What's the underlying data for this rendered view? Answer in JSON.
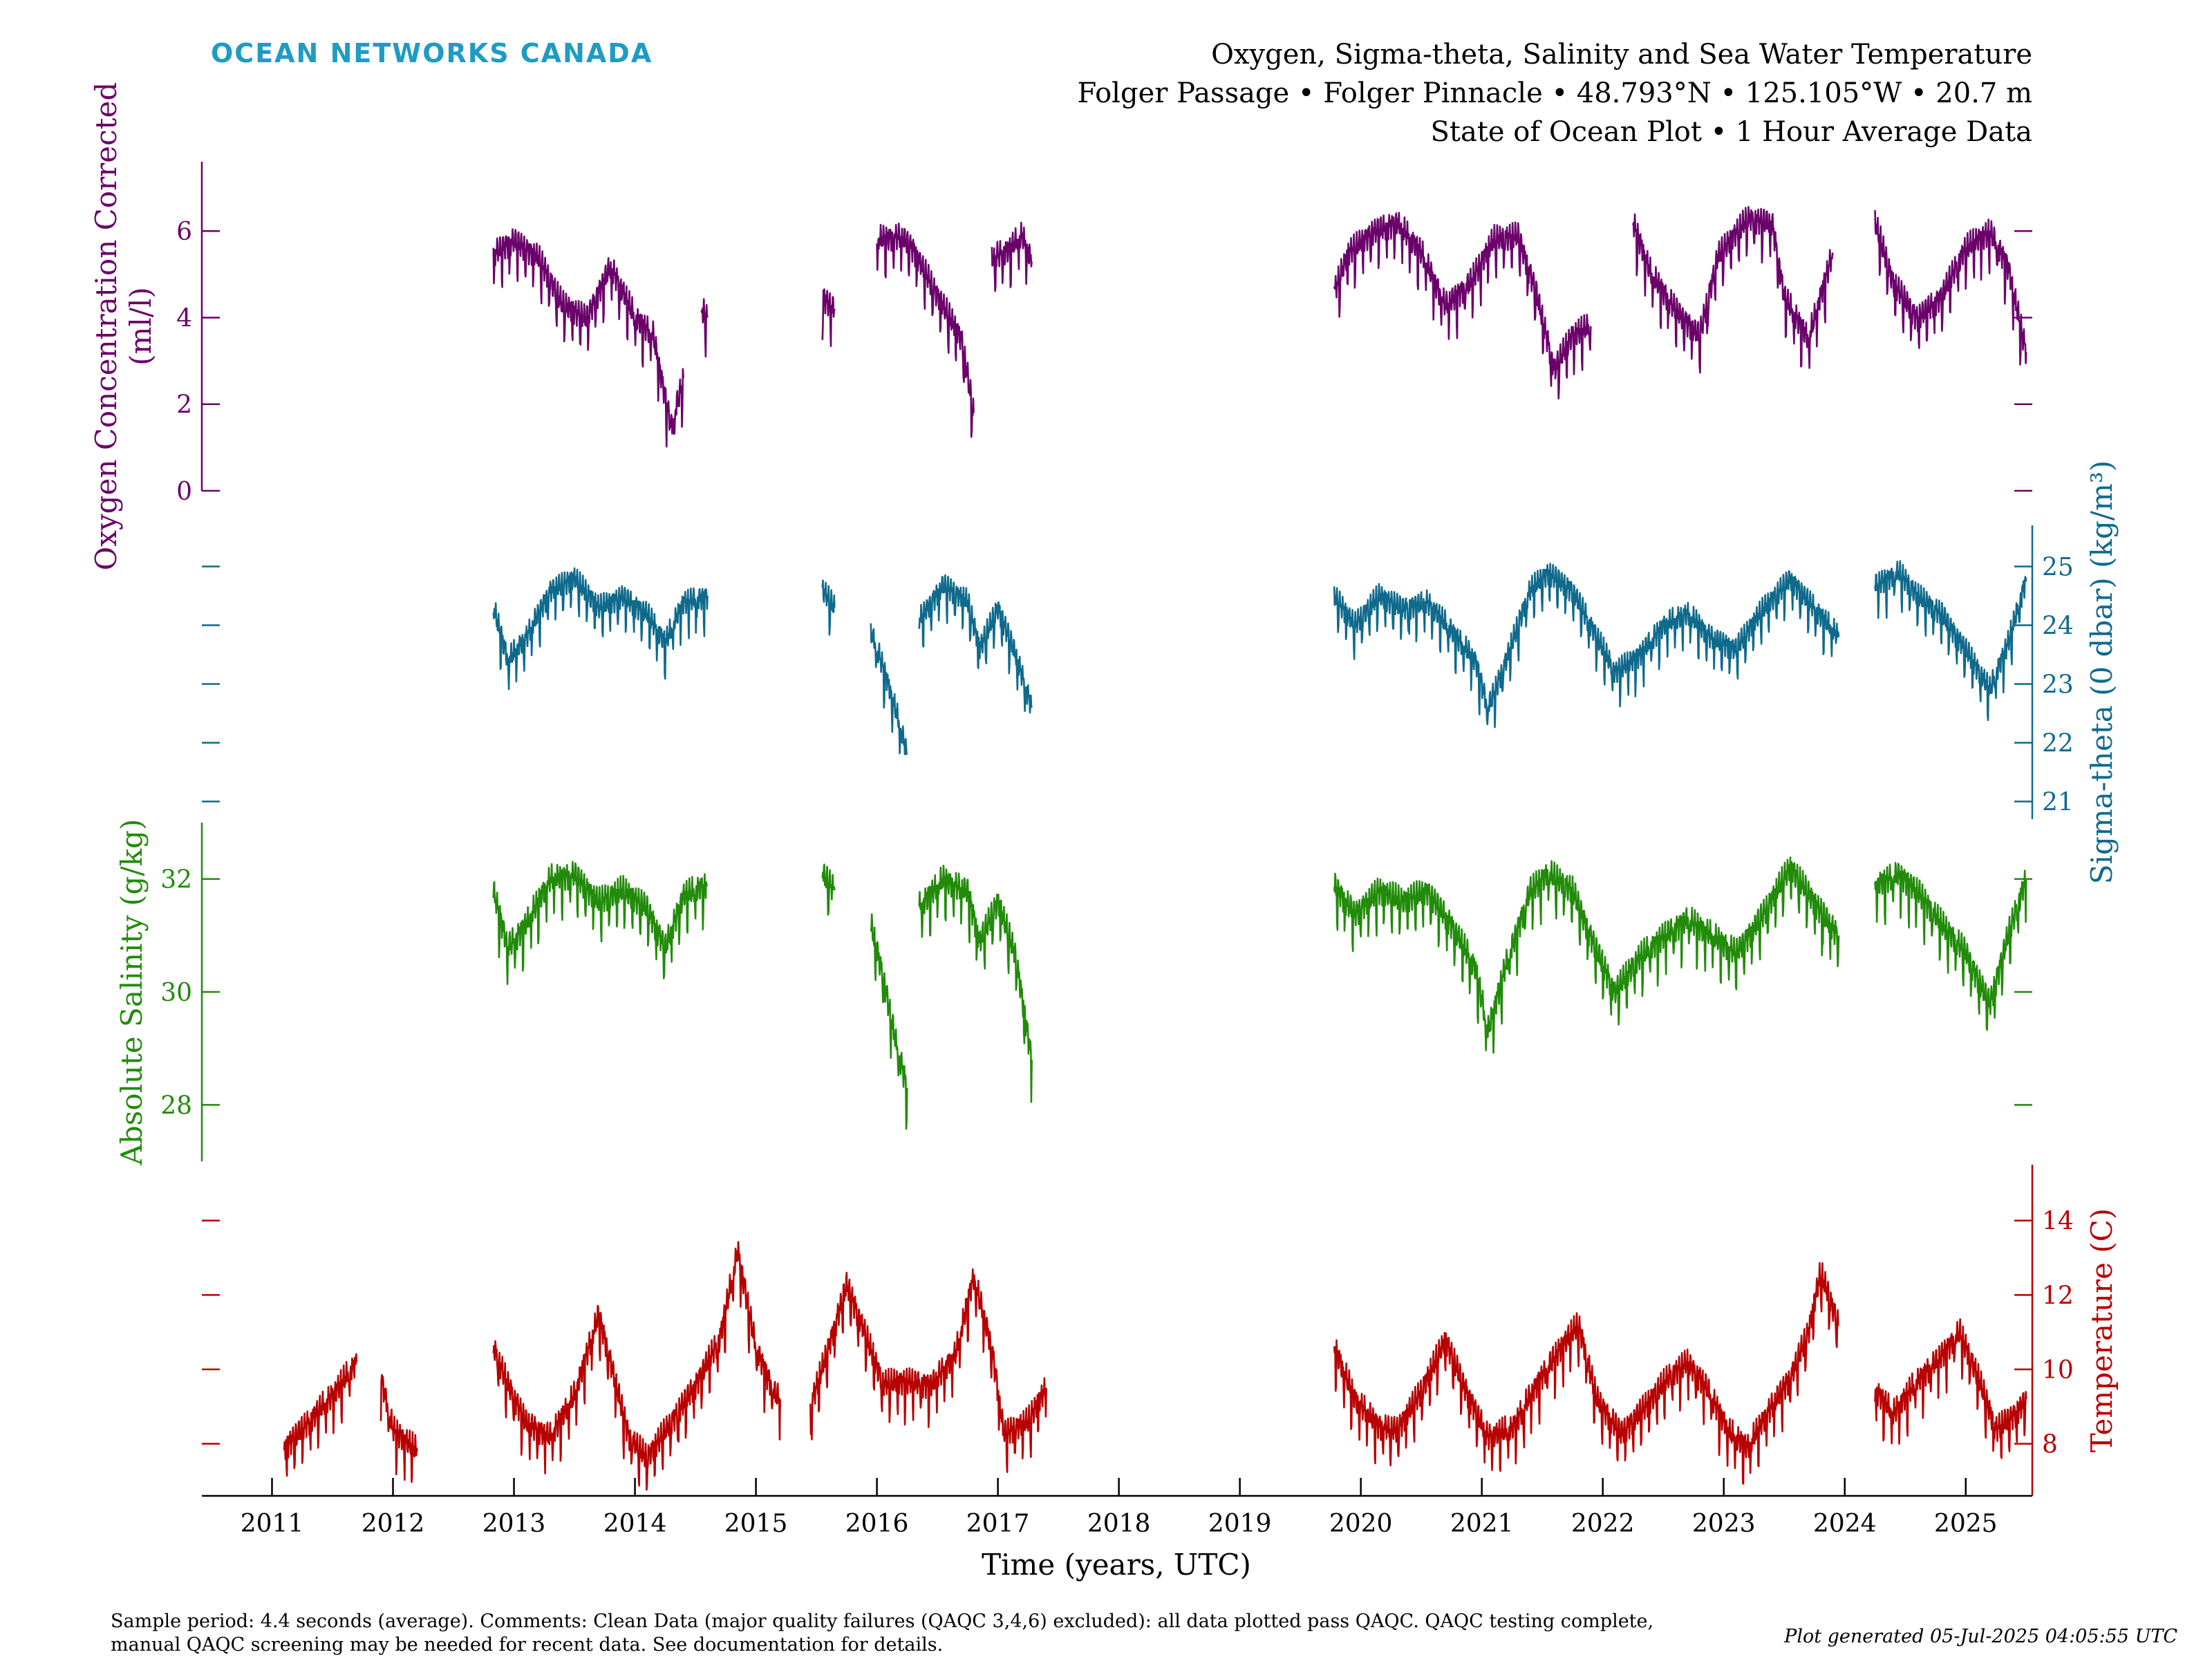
{
  "brand": "OCEAN NETWORKS CANADA",
  "title_lines": [
    "Oxygen, Sigma-theta, Salinity and Sea Water Temperature",
    "Folger Passage • Folger Pinnacle • 48.793°N • 125.105°W • 20.7 m",
    "State of Ocean Plot • 1 Hour Average Data"
  ],
  "footer": {
    "comment_lines": [
      "Sample period: 4.4 seconds (average). Comments: Clean Data (major quality failures (QAQC 3,4,6) excluded): all data plotted pass QAQC. QAQC testing complete,",
      "manual QAQC screening may be needed for recent data. See documentation for details."
    ],
    "generated": "Plot generated 05-Jul-2025 04:05:55 UTC"
  },
  "colors": {
    "oxygen": "#6b006b",
    "sigma": "#0f6a8c",
    "salinity": "#228b0a",
    "temperature": "#b80000",
    "brand": "#1f9bc4",
    "axis": "#000000"
  },
  "chart_data": {
    "type": "line",
    "xlabel": "Time (years, UTC)",
    "x_ticks": [
      "2011",
      "2012",
      "2013",
      "2014",
      "2015",
      "2016",
      "2017",
      "2018",
      "2019",
      "2020",
      "2021",
      "2022",
      "2023",
      "2024",
      "2025"
    ],
    "xlim": [
      2010.42,
      2025.55
    ],
    "series": [
      {
        "name": "Oxygen Concentration Corrected",
        "key": "oxygen",
        "ylabel_lines": [
          "Oxygen Concentration Corrected",
          "(ml/l)"
        ],
        "axis_side": "left",
        "ylim": [
          0,
          7.6
        ],
        "ticks": [
          0,
          2,
          4,
          6
        ],
        "points": [
          [
            2012.83,
            5.5
          ],
          [
            2013.0,
            5.8
          ],
          [
            2013.2,
            5.4
          ],
          [
            2013.4,
            4.3
          ],
          [
            2013.6,
            4.0
          ],
          [
            2013.8,
            5.2
          ],
          [
            2014.0,
            4.0
          ],
          [
            2014.15,
            3.6
          ],
          [
            2014.3,
            1.5
          ],
          [
            2014.4,
            2.6
          ],
          null,
          [
            2014.55,
            4.2
          ],
          [
            2014.6,
            4.0
          ],
          null,
          [
            2015.55,
            4.5
          ],
          [
            2015.65,
            4.2
          ],
          null,
          [
            2016.0,
            5.8
          ],
          [
            2016.2,
            5.9
          ],
          [
            2016.3,
            5.6
          ],
          [
            2016.5,
            4.5
          ],
          [
            2016.7,
            3.5
          ],
          [
            2016.8,
            1.8
          ],
          null,
          [
            2016.95,
            5.4
          ],
          [
            2017.1,
            5.6
          ],
          [
            2017.2,
            5.9
          ],
          [
            2017.28,
            5.3
          ],
          null,
          [
            2019.78,
            4.6
          ],
          [
            2019.9,
            5.5
          ],
          [
            2020.1,
            6.0
          ],
          [
            2020.3,
            6.2
          ],
          [
            2020.5,
            5.5
          ],
          [
            2020.7,
            4.3
          ],
          [
            2020.9,
            4.8
          ],
          [
            2021.1,
            5.8
          ],
          [
            2021.3,
            5.9
          ],
          [
            2021.45,
            4.6
          ],
          [
            2021.6,
            2.8
          ],
          [
            2021.75,
            3.6
          ],
          [
            2021.9,
            3.8
          ],
          null,
          [
            2022.25,
            6.2
          ],
          [
            2022.4,
            5.0
          ],
          [
            2022.6,
            4.2
          ],
          [
            2022.8,
            3.6
          ],
          [
            2022.95,
            5.4
          ],
          [
            2023.2,
            6.3
          ],
          [
            2023.4,
            6.2
          ],
          [
            2023.5,
            4.5
          ],
          [
            2023.7,
            3.5
          ],
          [
            2023.9,
            5.5
          ],
          null,
          [
            2024.25,
            6.2
          ],
          [
            2024.4,
            4.8
          ],
          [
            2024.6,
            4.0
          ],
          [
            2024.8,
            4.5
          ],
          [
            2025.0,
            5.6
          ],
          [
            2025.2,
            6.0
          ],
          [
            2025.35,
            5.2
          ],
          [
            2025.5,
            3.2
          ]
        ]
      },
      {
        "name": "Sigma-theta (0 dbar)",
        "key": "sigma",
        "ylabel_lines": [
          "Sigma-theta (0 dbar) (kg/m³)"
        ],
        "axis_side": "right",
        "ylim": [
          20.7,
          25.7
        ],
        "ticks": [
          21,
          22,
          23,
          24,
          25
        ],
        "points": [
          [
            2012.83,
            24.3
          ],
          [
            2012.95,
            23.4
          ],
          [
            2013.1,
            23.8
          ],
          [
            2013.3,
            24.6
          ],
          [
            2013.5,
            24.8
          ],
          [
            2013.7,
            24.3
          ],
          [
            2013.9,
            24.5
          ],
          [
            2014.1,
            24.2
          ],
          [
            2014.25,
            23.7
          ],
          [
            2014.4,
            24.4
          ],
          [
            2014.6,
            24.5
          ],
          null,
          [
            2015.55,
            24.6
          ],
          [
            2015.65,
            24.3
          ],
          null,
          [
            2015.95,
            23.9
          ],
          [
            2016.05,
            23.3
          ],
          [
            2016.15,
            22.6
          ],
          [
            2016.25,
            21.8
          ],
          null,
          [
            2016.35,
            24.1
          ],
          [
            2016.55,
            24.7
          ],
          [
            2016.75,
            24.4
          ],
          [
            2016.85,
            23.6
          ],
          [
            2017.0,
            24.3
          ],
          [
            2017.15,
            23.5
          ],
          [
            2017.28,
            22.6
          ],
          null,
          [
            2019.78,
            24.5
          ],
          [
            2019.95,
            24.0
          ],
          [
            2020.15,
            24.5
          ],
          [
            2020.35,
            24.3
          ],
          [
            2020.55,
            24.4
          ],
          [
            2020.75,
            23.9
          ],
          [
            2020.95,
            23.4
          ],
          [
            2021.05,
            22.6
          ],
          [
            2021.2,
            23.4
          ],
          [
            2021.4,
            24.6
          ],
          [
            2021.55,
            24.9
          ],
          [
            2021.75,
            24.6
          ],
          [
            2021.9,
            24.0
          ],
          [
            2022.1,
            23.2
          ],
          [
            2022.3,
            23.5
          ],
          [
            2022.5,
            24.0
          ],
          [
            2022.7,
            24.2
          ],
          [
            2022.9,
            23.8
          ],
          [
            2023.1,
            23.6
          ],
          [
            2023.3,
            24.2
          ],
          [
            2023.55,
            24.8
          ],
          [
            2023.75,
            24.3
          ],
          [
            2023.95,
            23.8
          ],
          null,
          [
            2024.25,
            24.7
          ],
          [
            2024.45,
            24.9
          ],
          [
            2024.6,
            24.5
          ],
          [
            2024.8,
            24.2
          ],
          [
            2025.0,
            23.6
          ],
          [
            2025.2,
            22.9
          ],
          [
            2025.35,
            23.7
          ],
          [
            2025.5,
            24.8
          ]
        ]
      },
      {
        "name": "Absolute Salinity",
        "key": "salinity",
        "ylabel_lines": [
          "Absolute Salinity (g/kg)"
        ],
        "axis_side": "left",
        "ylim": [
          27.0,
          33.0
        ],
        "ticks": [
          28,
          30,
          32
        ],
        "points": [
          [
            2012.83,
            31.8
          ],
          [
            2012.95,
            30.8
          ],
          [
            2013.1,
            31.2
          ],
          [
            2013.3,
            32.0
          ],
          [
            2013.5,
            32.1
          ],
          [
            2013.7,
            31.6
          ],
          [
            2013.9,
            31.8
          ],
          [
            2014.1,
            31.5
          ],
          [
            2014.25,
            30.8
          ],
          [
            2014.4,
            31.7
          ],
          [
            2014.6,
            31.9
          ],
          null,
          [
            2015.55,
            32.1
          ],
          [
            2015.65,
            31.8
          ],
          null,
          [
            2015.95,
            31.2
          ],
          [
            2016.05,
            30.3
          ],
          [
            2016.15,
            29.2
          ],
          [
            2016.25,
            28.3
          ],
          null,
          [
            2016.35,
            31.5
          ],
          [
            2016.55,
            32.0
          ],
          [
            2016.75,
            31.8
          ],
          [
            2016.85,
            30.9
          ],
          [
            2017.0,
            31.6
          ],
          [
            2017.15,
            30.6
          ],
          [
            2017.28,
            28.8
          ],
          null,
          [
            2019.78,
            31.9
          ],
          [
            2019.95,
            31.4
          ],
          [
            2020.15,
            31.8
          ],
          [
            2020.35,
            31.6
          ],
          [
            2020.55,
            31.8
          ],
          [
            2020.75,
            31.2
          ],
          [
            2020.95,
            30.4
          ],
          [
            2021.05,
            29.3
          ],
          [
            2021.2,
            30.5
          ],
          [
            2021.4,
            31.8
          ],
          [
            2021.55,
            32.1
          ],
          [
            2021.75,
            31.8
          ],
          [
            2021.9,
            31.0
          ],
          [
            2022.1,
            30.0
          ],
          [
            2022.3,
            30.6
          ],
          [
            2022.5,
            31.0
          ],
          [
            2022.7,
            31.3
          ],
          [
            2022.9,
            31.0
          ],
          [
            2023.1,
            30.7
          ],
          [
            2023.3,
            31.3
          ],
          [
            2023.55,
            32.2
          ],
          [
            2023.75,
            31.6
          ],
          [
            2023.95,
            31.0
          ],
          null,
          [
            2024.25,
            31.9
          ],
          [
            2024.45,
            32.1
          ],
          [
            2024.6,
            31.8
          ],
          [
            2024.8,
            31.2
          ],
          [
            2025.0,
            30.7
          ],
          [
            2025.2,
            29.8
          ],
          [
            2025.35,
            31.0
          ],
          [
            2025.5,
            32.0
          ]
        ]
      },
      {
        "name": "Temperature",
        "key": "temperature",
        "ylabel_lines": [
          "Temperature (C)"
        ],
        "axis_side": "right",
        "ylim": [
          6.6,
          15.5
        ],
        "ticks": [
          8,
          10,
          12,
          14
        ],
        "points": [
          [
            2011.1,
            7.9
          ],
          [
            2011.3,
            8.6
          ],
          [
            2011.5,
            9.3
          ],
          [
            2011.7,
            10.2
          ],
          null,
          [
            2011.9,
            9.8
          ],
          [
            2012.0,
            8.4
          ],
          [
            2012.2,
            7.8
          ],
          null,
          [
            2012.83,
            10.6
          ],
          [
            2012.95,
            9.6
          ],
          [
            2013.1,
            8.6
          ],
          [
            2013.3,
            8.2
          ],
          [
            2013.5,
            9.3
          ],
          [
            2013.7,
            11.5
          ],
          [
            2013.8,
            10.2
          ],
          [
            2013.95,
            8.2
          ],
          [
            2014.1,
            7.6
          ],
          [
            2014.3,
            8.6
          ],
          [
            2014.5,
            9.6
          ],
          [
            2014.7,
            10.8
          ],
          [
            2014.85,
            13.2
          ],
          [
            2015.0,
            10.6
          ],
          [
            2015.15,
            9.4
          ],
          [
            2015.2,
            9.2
          ],
          null,
          [
            2015.45,
            9.0
          ],
          [
            2015.6,
            10.6
          ],
          [
            2015.75,
            12.3
          ],
          [
            2015.9,
            11.0
          ],
          [
            2016.05,
            9.6
          ],
          [
            2016.25,
            9.7
          ],
          [
            2016.45,
            9.6
          ],
          [
            2016.65,
            10.4
          ],
          [
            2016.8,
            12.5
          ],
          [
            2016.95,
            10.6
          ],
          [
            2017.05,
            8.3
          ],
          [
            2017.25,
            8.6
          ],
          [
            2017.4,
            9.5
          ],
          null,
          [
            2019.78,
            10.6
          ],
          [
            2019.95,
            9.2
          ],
          [
            2020.15,
            8.5
          ],
          [
            2020.3,
            8.4
          ],
          [
            2020.5,
            9.4
          ],
          [
            2020.7,
            10.8
          ],
          [
            2020.85,
            9.6
          ],
          [
            2021.05,
            8.2
          ],
          [
            2021.25,
            8.4
          ],
          [
            2021.45,
            9.6
          ],
          [
            2021.65,
            10.6
          ],
          [
            2021.8,
            11.2
          ],
          [
            2021.95,
            9.2
          ],
          [
            2022.15,
            8.3
          ],
          [
            2022.35,
            9.0
          ],
          [
            2022.55,
            9.8
          ],
          [
            2022.7,
            10.2
          ],
          [
            2022.85,
            9.6
          ],
          [
            2023.05,
            8.3
          ],
          [
            2023.2,
            7.9
          ],
          [
            2023.35,
            8.8
          ],
          [
            2023.55,
            9.8
          ],
          [
            2023.7,
            11.0
          ],
          [
            2023.8,
            12.6
          ],
          [
            2023.95,
            11.2
          ],
          null,
          [
            2024.25,
            9.5
          ],
          [
            2024.4,
            8.8
          ],
          [
            2024.6,
            9.7
          ],
          [
            2024.8,
            10.4
          ],
          [
            2024.95,
            11.0
          ],
          [
            2025.1,
            9.8
          ],
          [
            2025.25,
            8.4
          ],
          [
            2025.4,
            8.8
          ],
          [
            2025.5,
            9.2
          ]
        ]
      }
    ]
  }
}
